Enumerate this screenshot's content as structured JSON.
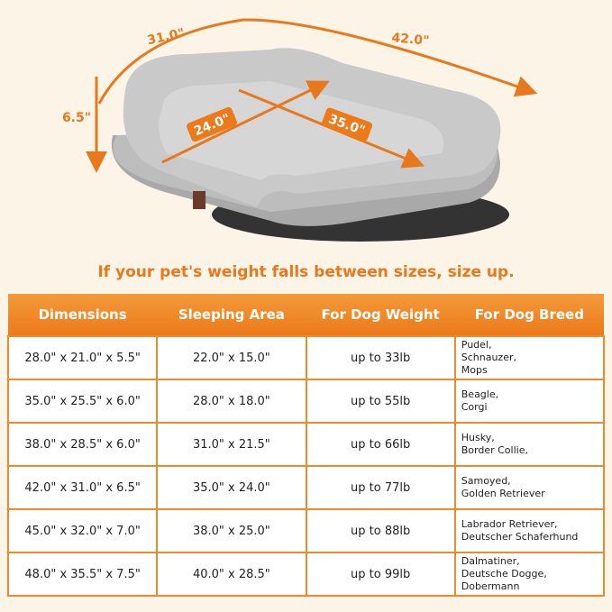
{
  "dimensions": {
    "width_front": "31.0\"",
    "length": "42.0\"",
    "height": "6.5\"",
    "sleep_width": "24.0\"",
    "sleep_length": "35.0\""
  },
  "headline": "If your pet's weight falls between sizes, size up.",
  "table": {
    "headers": [
      "Dimensions",
      "Sleeping Area",
      "For Dog Weight",
      "For Dog Breed"
    ],
    "rows": [
      [
        "28.0\" x 21.0\" x 5.5\"",
        "22.0\" x 15.0\"",
        "up to 33lb",
        [
          "Pudel,",
          "Schnauzer,",
          "Mops"
        ]
      ],
      [
        "35.0\" x 25.5\" x 6.0\"",
        "28.0\" x 18.0\"",
        "up to 55lb",
        [
          "Beagle,",
          "Corgi"
        ]
      ],
      [
        "38.0\" x 28.5\" x 6.0\"",
        "31.0\" x 21.5\"",
        "up to 66lb",
        [
          "Husky,",
          "Border Collie,"
        ]
      ],
      [
        "42.0\" x 31.0\" x 6.5\"",
        "35.0\" x 24.0\"",
        "up to 77lb",
        [
          "Samoyed,",
          "Golden Retriever"
        ]
      ],
      [
        "45.0\" x 32.0\" x 7.0\"",
        "38.0\" x 25.0\"",
        "up to 88lb",
        [
          "Labrador Retriever,",
          "Deutscher Schaferhund"
        ]
      ],
      [
        "48.0\" x 35.5\" x 7.5\"",
        "40.0\" x 28.5\"",
        "up to 99lb",
        [
          "Dalmatiner,",
          "Deutsche Dogge,",
          "Dobermann"
        ]
      ]
    ]
  }
}
